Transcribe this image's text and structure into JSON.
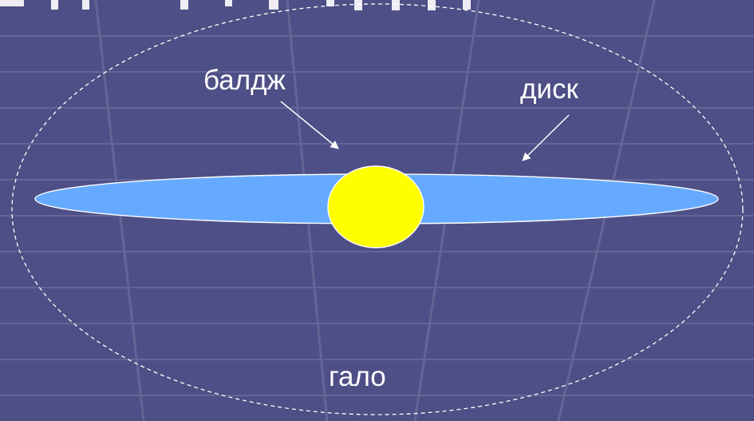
{
  "labels": {
    "bulge": "балдж",
    "disk": "диск",
    "halo": "гало"
  },
  "colors": {
    "background": "#4e4f86",
    "disk_fill": "#66aaff",
    "bulge_fill": "#ffff00",
    "outline": "#ffffff",
    "text": "#ffffff"
  }
}
